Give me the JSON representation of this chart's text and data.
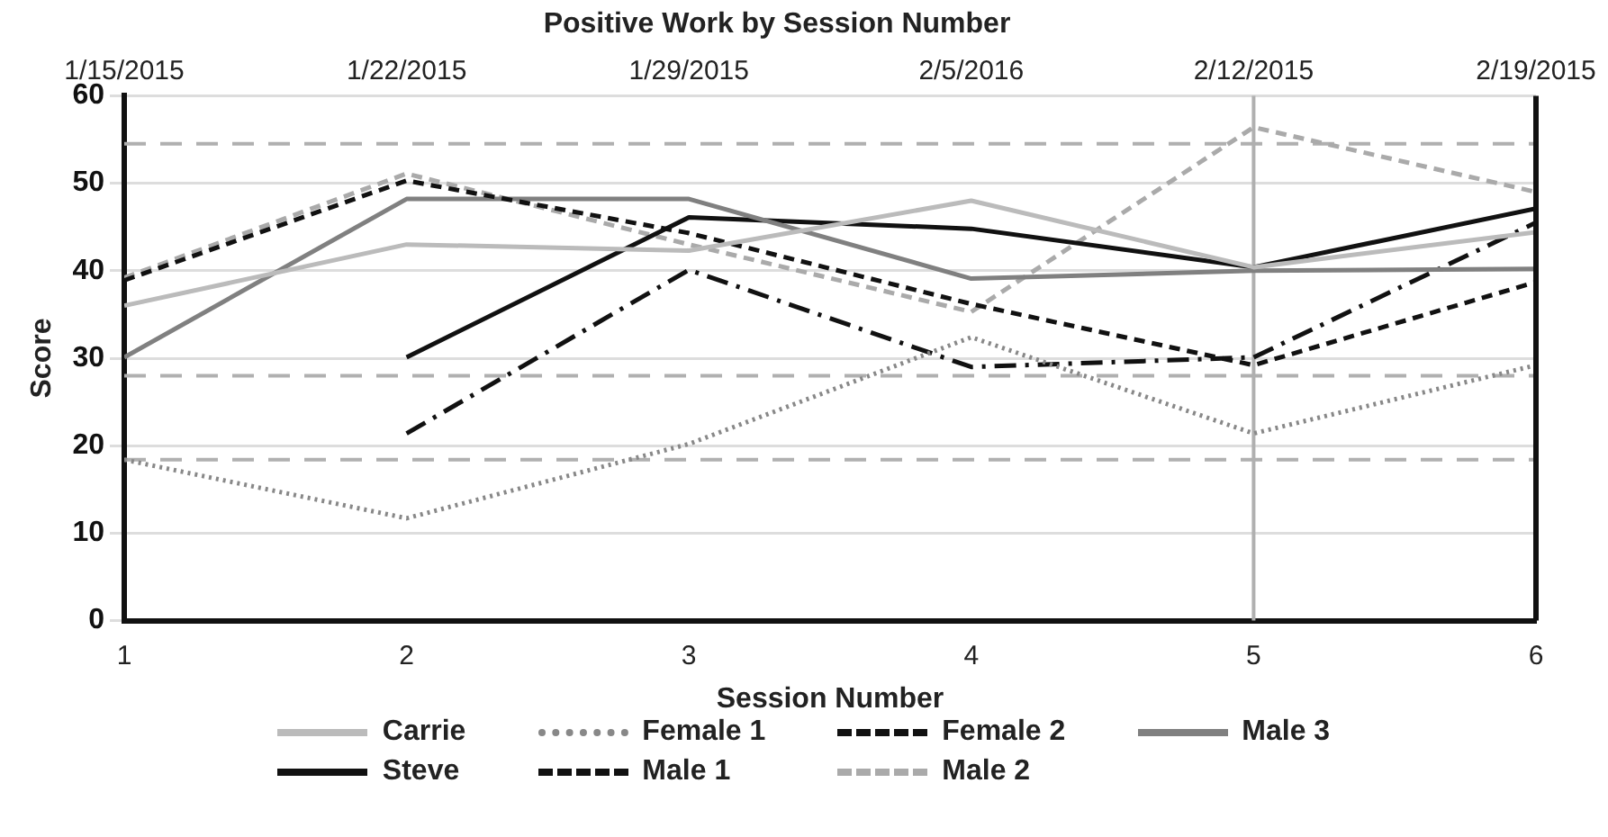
{
  "chart_data": {
    "type": "line",
    "title": "Positive Work by Session Number",
    "xlabel": "Session Number",
    "ylabel": "Score",
    "x": [
      1,
      2,
      3,
      4,
      5,
      6
    ],
    "xlim": [
      1,
      6
    ],
    "xticks": [
      1,
      2,
      3,
      4,
      5,
      6
    ],
    "annotations": [
      "1/15/2015",
      "1/22/2015",
      "1/29/2015",
      "2/5/2016",
      "2/12/2015",
      "2/19/2015"
    ],
    "ylim": [
      0,
      60
    ],
    "yticks": [
      0,
      10,
      20,
      30,
      40,
      50,
      60
    ],
    "grid": "y",
    "legend": "bottom",
    "marker": "none",
    "series": [
      {
        "name": "Carrie",
        "color": "#bbbbbb",
        "line_style": "solid",
        "values": [
          36,
          43,
          42.3,
          48,
          40.4,
          44.4
        ]
      },
      {
        "name": "Female 1",
        "color": "#888888",
        "line_style": "dotted",
        "values": [
          18.4,
          11.7,
          20.2,
          32.4,
          21.4,
          29.2
        ]
      },
      {
        "name": "Female 2",
        "color": "#111111",
        "line_style": "dashed",
        "values": [
          38.9,
          50.3,
          44.3,
          36.2,
          29.2,
          38.7
        ]
      },
      {
        "name": "Male 3",
        "color": "#808080",
        "line_style": "solid",
        "values": [
          30.1,
          48.2,
          48.2,
          39.1,
          40,
          40.2
        ]
      },
      {
        "name": "Steve",
        "color": "#111111",
        "line_style": "solid",
        "values": [
          null,
          30.1,
          46.1,
          44.8,
          40.4,
          47.1
        ]
      },
      {
        "name": "Male 1",
        "color": "#111111",
        "line_style": "dashdot",
        "values": [
          null,
          21.4,
          40.1,
          29,
          30.1,
          45.5
        ]
      },
      {
        "name": "Male 2",
        "color": "#aaaaaa",
        "line_style": "dashed",
        "values": [
          39.2,
          51.1,
          43,
          35.3,
          56.4,
          49
        ]
      }
    ],
    "ref_lines": [
      {
        "axis": "y",
        "value": 54.5,
        "color": "#b0b0b0",
        "line_style": "dashed"
      },
      {
        "axis": "y",
        "value": 28,
        "color": "#b0b0b0",
        "line_style": "dashed"
      },
      {
        "axis": "y",
        "value": 18.4,
        "color": "#b0b0b0",
        "line_style": "dashed"
      },
      {
        "axis": "x",
        "value": 5,
        "color": "#b0b0b0",
        "line_style": "solid"
      }
    ]
  }
}
